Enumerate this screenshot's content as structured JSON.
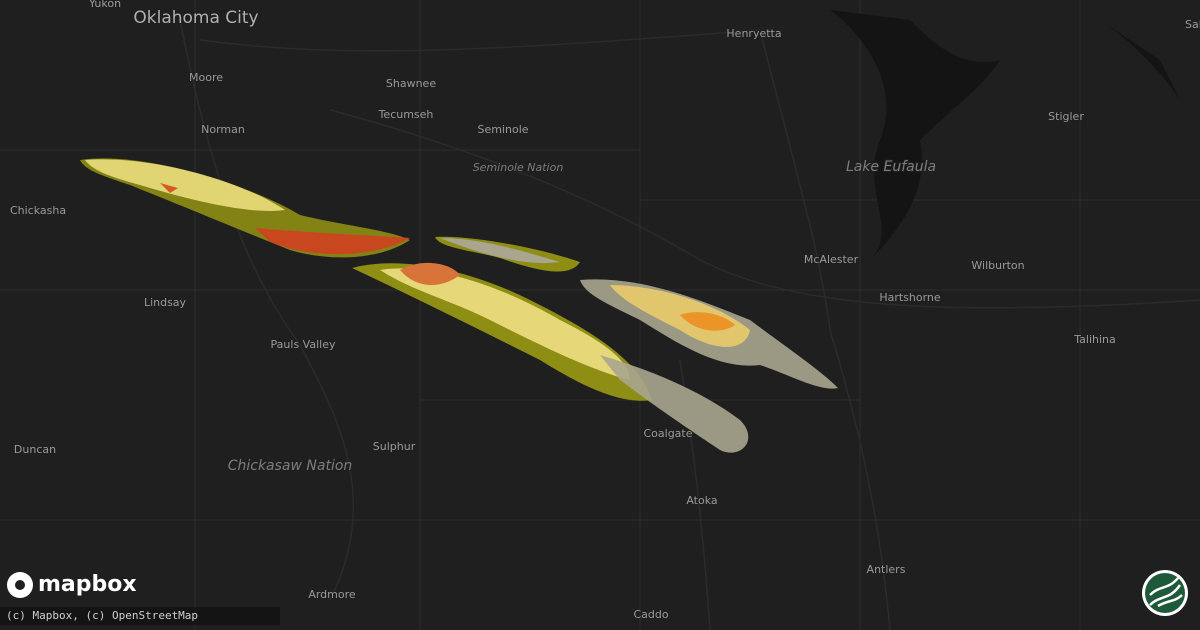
{
  "places": [
    "Yukon",
    "Oklahoma City",
    "Moore",
    "Norman",
    "Shawnee",
    "Tecumseh",
    "Seminole",
    "Henryetta",
    "Sallis",
    "Stigler",
    "McAlester",
    "Wilburton",
    "Hartshorne",
    "Talihina",
    "Chickasha",
    "Lindsay",
    "Pauls Valley",
    "Duncan",
    "Sulphur",
    "Coalgate",
    "Atoka",
    "Antlers",
    "Ardmore",
    "Caddo"
  ],
  "regions": [
    "Seminole Nation",
    "Lake Eufaula",
    "Chickasaw Nation"
  ],
  "logo": "mapbox",
  "attribution": "(c) Mapbox, (c) OpenStreetMap"
}
